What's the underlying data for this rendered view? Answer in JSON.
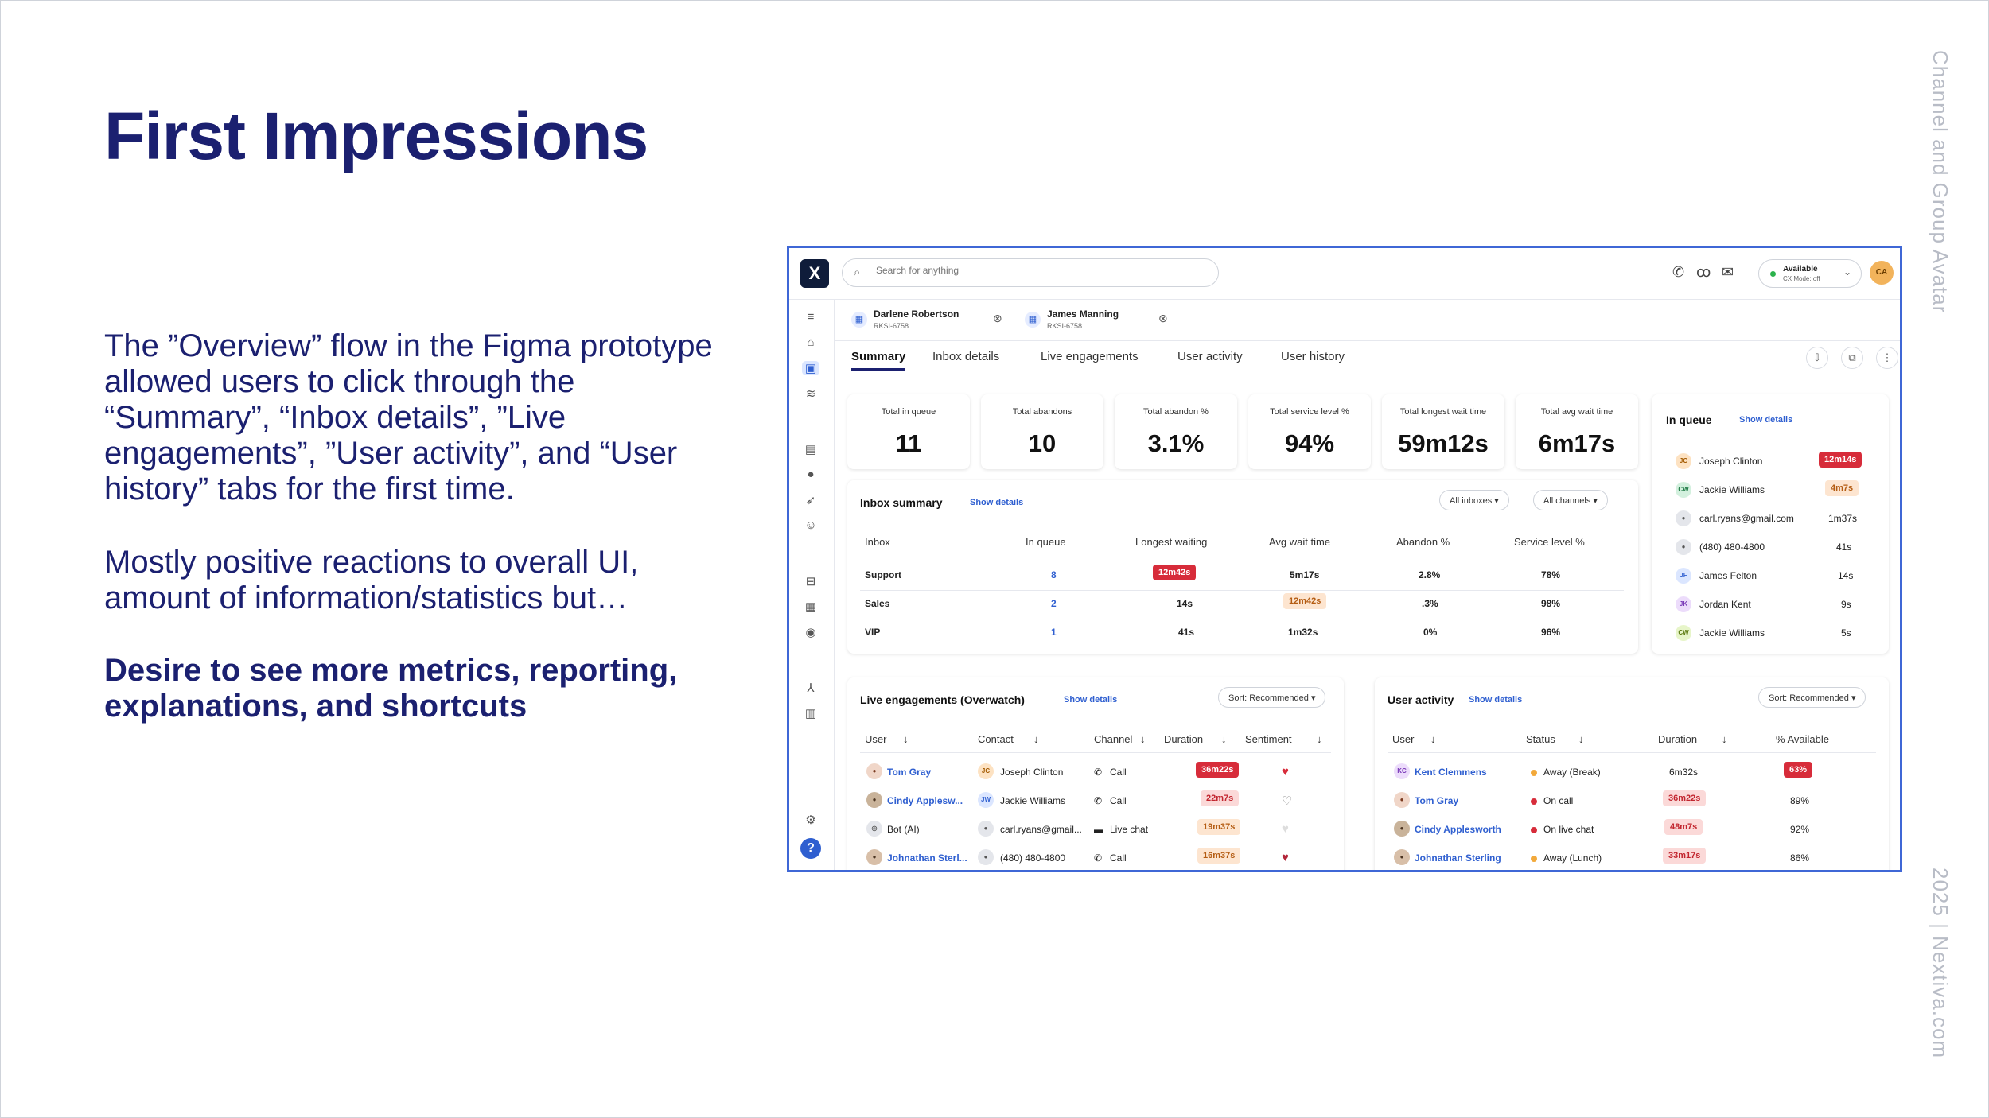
{
  "slide": {
    "title": "First Impressions",
    "para1": "The ”Overview” flow in the Figma prototype allowed users to click through the “Summary”, “Inbox details”, ”Live engagements”, ”User activity”, and “User history” tabs for the first time.",
    "para2": "Mostly positive reactions to overall UI, amount of information/statistics but…",
    "para3": "Desire to see more metrics, reporting, explanations, and shortcuts",
    "side_top": "Channel and Group Avatar",
    "side_bottom": "2025 | Nextiva.com"
  },
  "app": {
    "search_placeholder": "Search for anything",
    "status": {
      "label": "Available",
      "sub": "CX Mode: off"
    },
    "user_initials": "CA",
    "contact_tabs": [
      {
        "name": "Darlene Robertson",
        "id": "RKSI-6758"
      },
      {
        "name": "James Manning",
        "id": "RKSI-6758"
      }
    ],
    "tabs": [
      "Summary",
      "Inbox details",
      "Live engagements",
      "User activity",
      "User history"
    ],
    "kpis": [
      {
        "label": "Total in queue",
        "value": "11"
      },
      {
        "label": "Total abandons",
        "value": "10"
      },
      {
        "label": "Total abandon %",
        "value": "3.1%"
      },
      {
        "label": "Total service level %",
        "value": "94%"
      },
      {
        "label": "Total longest wait time",
        "value": "59m12s"
      },
      {
        "label": "Total avg wait time",
        "value": "6m17s"
      }
    ],
    "inbox_summary": {
      "title": "Inbox summary",
      "link": "Show details",
      "filter1": "All inboxes",
      "filter2": "All channels",
      "headers": [
        "Inbox",
        "In queue",
        "Longest waiting",
        "Avg wait time",
        "Abandon %",
        "Service level %"
      ],
      "rows": [
        {
          "inbox": "Support",
          "queue": "8",
          "longest": "12m42s",
          "avg": "5m17s",
          "abandon": "2.8%",
          "service": "78%"
        },
        {
          "inbox": "Sales",
          "queue": "2",
          "longest": "14s",
          "avg": "12m42s",
          "abandon": ".3%",
          "service": "98%"
        },
        {
          "inbox": "VIP",
          "queue": "1",
          "longest": "41s",
          "avg": "1m32s",
          "abandon": "0%",
          "service": "96%"
        }
      ]
    },
    "in_queue": {
      "title": "In queue",
      "link": "Show details",
      "rows": [
        {
          "initials": "JC",
          "name": "Joseph Clinton",
          "time": "12m14s"
        },
        {
          "initials": "CW",
          "name": "Jackie Williams",
          "time": "4m7s"
        },
        {
          "initials": "",
          "name": "carl.ryans@gmail.com",
          "time": "1m37s"
        },
        {
          "initials": "",
          "name": "(480) 480-4800",
          "time": "41s"
        },
        {
          "initials": "JF",
          "name": "James Felton",
          "time": "14s"
        },
        {
          "initials": "JK",
          "name": "Jordan Kent",
          "time": "9s"
        },
        {
          "initials": "CW",
          "name": "Jackie Williams",
          "time": "5s"
        }
      ]
    },
    "live_engagements": {
      "title": "Live engagements (Overwatch)",
      "link": "Show details",
      "sort": "Sort: Recommended",
      "headers": [
        "User",
        "Contact",
        "Channel",
        "Duration",
        "Sentiment"
      ],
      "rows": [
        {
          "user": "Tom Gray",
          "contact_initials": "JC",
          "contact": "Joseph Clinton",
          "channel": "Call",
          "duration": "36m22s"
        },
        {
          "user": "Cindy Applesw...",
          "contact_initials": "JW",
          "contact": "Jackie Williams",
          "channel": "Call",
          "duration": "22m7s"
        },
        {
          "user": "Bot (AI)",
          "contact_initials": "",
          "contact": "carl.ryans@gmail...",
          "channel": "Live chat",
          "duration": "19m37s"
        },
        {
          "user": "Johnathan Sterl...",
          "contact_initials": "",
          "contact": "(480) 480-4800",
          "channel": "Call",
          "duration": "16m37s"
        }
      ]
    },
    "user_activity": {
      "title": "User activity",
      "link": "Show details",
      "sort": "Sort: Recommended",
      "headers": [
        "User",
        "Status",
        "Duration",
        "% Available"
      ],
      "rows": [
        {
          "initials": "KC",
          "user": "Kent Clemmens",
          "status": "Away (Break)",
          "duration": "6m32s",
          "available": "63%"
        },
        {
          "initials": "",
          "user": "Tom Gray",
          "status": "On call",
          "duration": "36m22s",
          "available": "89%"
        },
        {
          "initials": "",
          "user": "Cindy Applesworth",
          "status": "On live chat",
          "duration": "48m7s",
          "available": "92%"
        },
        {
          "initials": "",
          "user": "Johnathan Sterling",
          "status": "Away (Lunch)",
          "duration": "33m17s",
          "available": "86%"
        }
      ]
    },
    "colors": {
      "accent": "#2f5fd0",
      "title": "#1b2070",
      "alert": "#d72c3a",
      "border": "#3f67d6"
    }
  }
}
